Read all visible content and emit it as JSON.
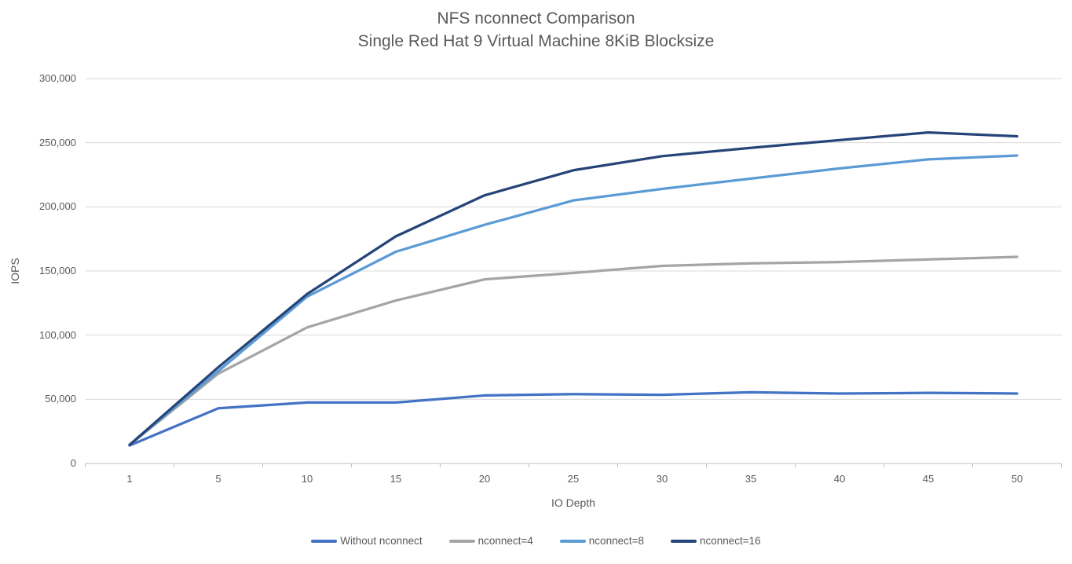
{
  "chart_data": {
    "type": "line",
    "title_line1": "NFS nconnect Comparison",
    "title_line2": "Single Red Hat 9 Virtual Machine 8KiB Blocksize",
    "xlabel": "IO Depth",
    "ylabel": "IOPS",
    "categories": [
      1,
      5,
      10,
      15,
      20,
      25,
      30,
      35,
      40,
      45,
      50
    ],
    "y_ticks": [
      "0",
      "50,000",
      "100,000",
      "150,000",
      "200,000",
      "250,000",
      "300,000"
    ],
    "ylim": [
      0,
      300000
    ],
    "y_tick_interval": 50000,
    "grid": true,
    "legend_position": "bottom",
    "axis_color": "#bfbfbf",
    "gridline_color": "#d9d9d9",
    "text_color": "#595959",
    "series": [
      {
        "name": "Without nconnect",
        "color": "#4472C4",
        "values": [
          14000,
          43000,
          47500,
          47500,
          53000,
          54000,
          53500,
          55500,
          54500,
          55000,
          54500
        ]
      },
      {
        "name": "nconnect=4",
        "color": "#A5A5A5",
        "values": [
          14500,
          70000,
          106000,
          127000,
          143500,
          148500,
          154000,
          156000,
          157000,
          159000,
          161000
        ]
      },
      {
        "name": "nconnect=8",
        "color": "#5B9BD5",
        "values": [
          14500,
          72000,
          130000,
          165000,
          186000,
          205000,
          214000,
          222000,
          230000,
          237000,
          240000
        ]
      },
      {
        "name": "nconnect=16",
        "color": "#264478",
        "values": [
          14500,
          75000,
          132000,
          177000,
          209000,
          228500,
          239500,
          246000,
          252000,
          258000,
          255000
        ]
      }
    ]
  }
}
